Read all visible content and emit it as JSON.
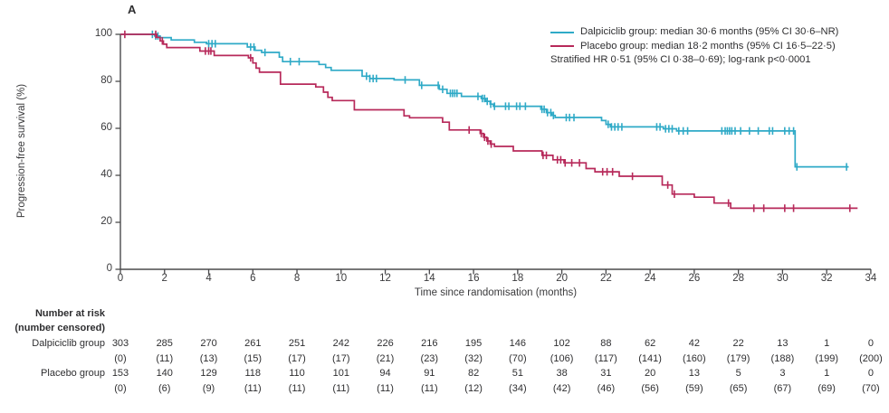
{
  "panel_label": "A",
  "colors": {
    "dalpiciclib": "#2FAAC7",
    "placebo": "#B7295A",
    "axis": "#4a4a4c",
    "text": "#2e2e30"
  },
  "legend": {
    "items": [
      {
        "label": "Dalpiciclib group: median 30·6 months (95% CI 30·6–NR)",
        "color_key": "dalpiciclib"
      },
      {
        "label": "Placebo group: median 18·2 months (95% CI 16·5–22·5)",
        "color_key": "placebo"
      }
    ],
    "note": "Stratified HR 0·51 (95% CI 0·38–0·69); log-rank p<0·0001"
  },
  "chart_data": {
    "type": "line",
    "subtype": "kaplan-meier-step",
    "title": "",
    "xlabel": "Time since randomisation (months)",
    "ylabel": "Progression-free survival (%)",
    "xlim": [
      0,
      34
    ],
    "ylim": [
      0,
      100
    ],
    "x_ticks": [
      0,
      2,
      4,
      6,
      8,
      10,
      12,
      14,
      16,
      18,
      20,
      22,
      24,
      26,
      28,
      30,
      32,
      34
    ],
    "y_ticks": [
      0,
      20,
      40,
      60,
      80,
      100
    ],
    "grid": false,
    "legend_position": "top-right",
    "series": [
      {
        "name": "Dalpiciclib group",
        "color": "#2FAAC7",
        "median_months": 30.6,
        "ci_95": "30·6–NR",
        "steps": [
          [
            0,
            100
          ],
          [
            1.55,
            99.3
          ],
          [
            1.8,
            98.6
          ],
          [
            2.3,
            97.6
          ],
          [
            3.35,
            96.6
          ],
          [
            3.9,
            96.0
          ],
          [
            5.75,
            94.6
          ],
          [
            6.1,
            93.2
          ],
          [
            6.4,
            92.3
          ],
          [
            7.2,
            90.3
          ],
          [
            7.35,
            88.4
          ],
          [
            9.0,
            87.2
          ],
          [
            9.3,
            85.9
          ],
          [
            9.55,
            84.7
          ],
          [
            10.95,
            82.2
          ],
          [
            11.3,
            81.2
          ],
          [
            12.4,
            80.6
          ],
          [
            13.55,
            78.3
          ],
          [
            14.45,
            76.6
          ],
          [
            14.8,
            74.9
          ],
          [
            15.45,
            73.6
          ],
          [
            16.35,
            72.7
          ],
          [
            16.55,
            71.5
          ],
          [
            16.75,
            70.3
          ],
          [
            16.9,
            69.4
          ],
          [
            19.05,
            68.1
          ],
          [
            19.3,
            66.7
          ],
          [
            19.55,
            65.5
          ],
          [
            19.7,
            64.6
          ],
          [
            21.8,
            63.3
          ],
          [
            22.0,
            61.7
          ],
          [
            22.2,
            60.6
          ],
          [
            24.6,
            59.8
          ],
          [
            25.2,
            58.9
          ],
          [
            30.57,
            43.6
          ],
          [
            33.0,
            43.6
          ]
        ],
        "censors": [
          1.45,
          1.6,
          1.7,
          4.0,
          4.15,
          4.3,
          5.9,
          6.05,
          6.55,
          7.7,
          8.1,
          11.15,
          11.3,
          11.45,
          11.6,
          12.9,
          13.65,
          14.4,
          14.6,
          14.95,
          15.05,
          15.15,
          15.25,
          16.2,
          16.4,
          16.5,
          16.62,
          16.78,
          16.95,
          17.45,
          17.6,
          17.95,
          18.1,
          18.35,
          19.1,
          19.2,
          19.35,
          19.5,
          19.62,
          20.2,
          20.35,
          20.55,
          22.1,
          22.25,
          22.4,
          22.55,
          22.72,
          24.3,
          24.45,
          24.7,
          24.85,
          25.0,
          25.3,
          25.5,
          25.7,
          27.25,
          27.4,
          27.5,
          27.6,
          27.7,
          27.85,
          28.1,
          28.5,
          28.9,
          29.4,
          29.55,
          30.1,
          30.3,
          30.5,
          30.65,
          32.9
        ]
      },
      {
        "name": "Placebo group",
        "color": "#B7295A",
        "median_months": 18.2,
        "ci_95": "16·5–22·5",
        "steps": [
          [
            0,
            100
          ],
          [
            1.65,
            98.7
          ],
          [
            1.8,
            97.2
          ],
          [
            1.95,
            95.8
          ],
          [
            2.1,
            94.4
          ],
          [
            3.6,
            92.9
          ],
          [
            4.25,
            91.0
          ],
          [
            5.8,
            90.0
          ],
          [
            6.0,
            87.8
          ],
          [
            6.15,
            85.6
          ],
          [
            6.3,
            83.9
          ],
          [
            7.25,
            78.8
          ],
          [
            8.85,
            77.6
          ],
          [
            9.2,
            75.4
          ],
          [
            9.4,
            73.2
          ],
          [
            9.6,
            71.8
          ],
          [
            10.6,
            67.9
          ],
          [
            12.85,
            65.3
          ],
          [
            13.1,
            64.5
          ],
          [
            14.6,
            62.6
          ],
          [
            14.9,
            59.3
          ],
          [
            16.3,
            57.8
          ],
          [
            16.45,
            56.2
          ],
          [
            16.6,
            54.6
          ],
          [
            16.75,
            53.3
          ],
          [
            16.95,
            52.3
          ],
          [
            17.8,
            50.4
          ],
          [
            19.1,
            48.5
          ],
          [
            19.6,
            46.6
          ],
          [
            20.1,
            45.3
          ],
          [
            21.1,
            42.9
          ],
          [
            21.5,
            41.5
          ],
          [
            22.6,
            39.6
          ],
          [
            24.55,
            35.9
          ],
          [
            25.0,
            32.0
          ],
          [
            26.0,
            30.7
          ],
          [
            26.9,
            28.2
          ],
          [
            27.65,
            26.0
          ],
          [
            33.4,
            26.0
          ]
        ],
        "censors": [
          0.2,
          1.6,
          1.9,
          3.85,
          4.0,
          4.1,
          5.9,
          15.8,
          16.35,
          16.5,
          16.65,
          16.8,
          19.15,
          19.3,
          19.8,
          19.95,
          20.15,
          20.45,
          20.8,
          21.85,
          22.05,
          22.3,
          23.2,
          24.8,
          25.1,
          27.55,
          28.7,
          29.15,
          30.1,
          30.5,
          33.05
        ]
      }
    ],
    "annotations": [
      "Stratified HR 0·51 (95% CI 0·38–0·69); log-rank p<0·0001"
    ]
  },
  "risk_table": {
    "header_line1": "Number at risk",
    "header_line2": "(number censored)",
    "time_points": [
      0,
      2,
      4,
      6,
      8,
      10,
      12,
      14,
      16,
      18,
      20,
      22,
      24,
      26,
      28,
      30,
      32,
      34
    ],
    "rows": [
      {
        "label": "Dalpiciclib group",
        "at_risk": [
          "303",
          "285",
          "270",
          "261",
          "251",
          "242",
          "226",
          "216",
          "195",
          "146",
          "102",
          "88",
          "62",
          "42",
          "22",
          "13",
          "1",
          "0"
        ],
        "censored": [
          "(0)",
          "(11)",
          "(13)",
          "(15)",
          "(17)",
          "(17)",
          "(21)",
          "(23)",
          "(32)",
          "(70)",
          "(106)",
          "(117)",
          "(141)",
          "(160)",
          "(179)",
          "(188)",
          "(199)",
          "(200)"
        ]
      },
      {
        "label": "Placebo group",
        "at_risk": [
          "153",
          "140",
          "129",
          "118",
          "110",
          "101",
          "94",
          "91",
          "82",
          "51",
          "38",
          "31",
          "20",
          "13",
          "5",
          "3",
          "1",
          "0"
        ],
        "censored": [
          "(0)",
          "(6)",
          "(9)",
          "(11)",
          "(11)",
          "(11)",
          "(11)",
          "(11)",
          "(12)",
          "(34)",
          "(42)",
          "(46)",
          "(56)",
          "(59)",
          "(65)",
          "(67)",
          "(69)",
          "(70)"
        ]
      }
    ]
  }
}
